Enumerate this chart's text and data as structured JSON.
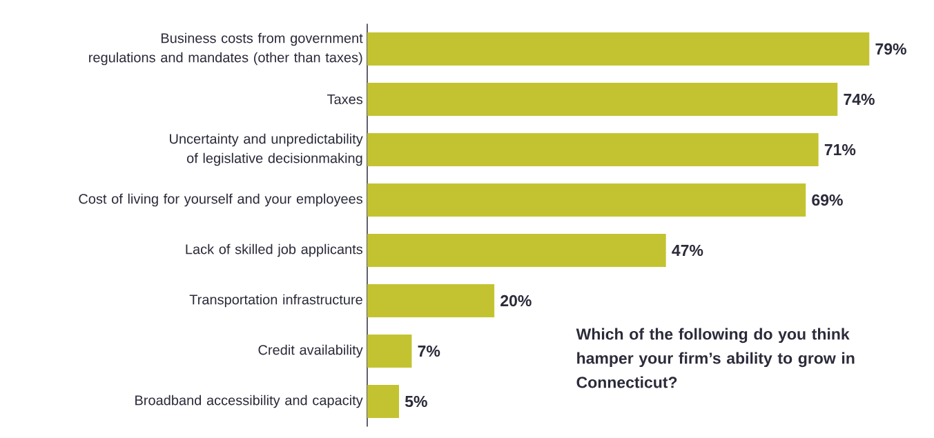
{
  "chart_data": {
    "type": "bar",
    "orientation": "horizontal",
    "title": "Which of the following do you think hamper your firm’s ability to grow in Connecticut?",
    "categories": [
      "Business costs from government regulations and mandates (other than taxes)",
      "Taxes",
      "Uncertainty and unpredictability of legislative decisionmaking",
      "Cost of living for yourself and your employees",
      "Lack of skilled job applicants",
      "Transportation infrastructure",
      "Credit availability",
      "Broadband accessibility and capacity"
    ],
    "values": [
      79,
      74,
      71,
      69,
      47,
      20,
      7,
      5
    ],
    "value_labels": [
      "79%",
      "74%",
      "71%",
      "69%",
      "47%",
      "20%",
      "7%",
      "5%"
    ],
    "color": "#c3c331"
  }
}
